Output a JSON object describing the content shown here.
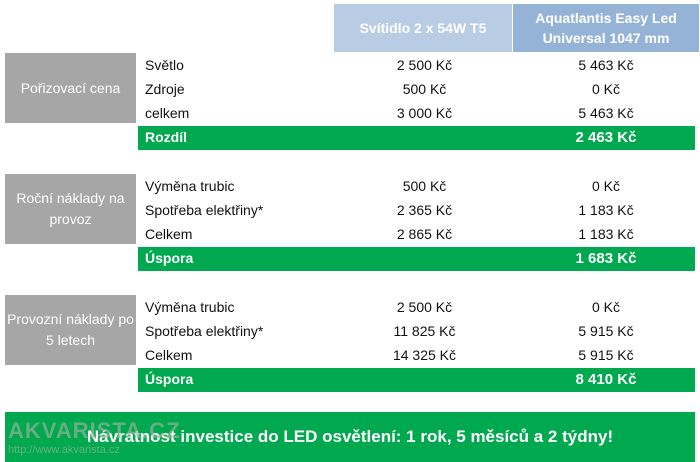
{
  "columns": {
    "col1": "Svítidlo 2 x 54W T5",
    "col2_line1": "Aquatlantis Easy Led",
    "col2_line2": "Universal 1047 mm"
  },
  "groups": [
    {
      "title": "Pořizovací cena",
      "rows": [
        {
          "label": "Světlo",
          "v1": "2 500 Kč",
          "v2": "5 463 Kč"
        },
        {
          "label": "Zdroje",
          "v1": "500 Kč",
          "v2": "0 Kč"
        },
        {
          "label": "celkem",
          "v1": "3 000 Kč",
          "v2": "5 463 Kč"
        }
      ],
      "summary": {
        "label": "Rozdíl",
        "value": "2 463 Kč"
      }
    },
    {
      "title": "Roční náklady na provoz",
      "rows": [
        {
          "label": "Výměna trubic",
          "v1": "500 Kč",
          "v2": "0 Kč"
        },
        {
          "label": "Spotřeba elektřiny*",
          "v1": "2 365 Kč",
          "v2": "1 183 Kč"
        },
        {
          "label": "Celkem",
          "v1": "2 865 Kč",
          "v2": "1 183 Kč"
        }
      ],
      "summary": {
        "label": "Úspora",
        "value": "1 683 Kč"
      }
    },
    {
      "title": "Provozní náklady po 5 letech",
      "rows": [
        {
          "label": "Výměna trubic",
          "v1": "2 500 Kč",
          "v2": "0 Kč"
        },
        {
          "label": "Spotřeba elektřiny*",
          "v1": "11 825 Kč",
          "v2": "5 915 Kč"
        },
        {
          "label": "Celkem",
          "v1": "14 325 Kč",
          "v2": "5 915 Kč"
        }
      ],
      "summary": {
        "label": "Úspora",
        "value": "8 410 Kč"
      }
    }
  ],
  "banner": "Návratnost investice do LED osvětlení: 1 rok, 5 měsíců a 2 týdny!",
  "watermark": {
    "brand": "AKVARISTA.CZ",
    "url": "http://www.akvarista.cz"
  },
  "colors": {
    "header1": "#b8cce4",
    "header2": "#95b3d7",
    "group_box": "#a6a6a6",
    "highlight": "#00a84f"
  }
}
